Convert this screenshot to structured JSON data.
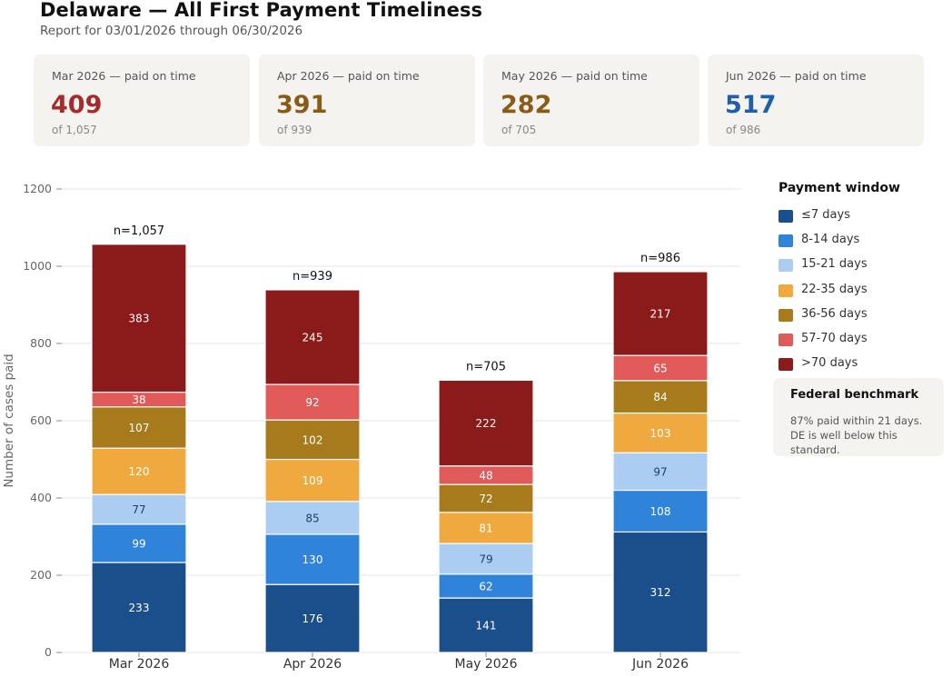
{
  "title": "Delaware — All First Payment Timeliness",
  "subtitle": "Report for 03/01/2026 through 06/30/2026",
  "cards": [
    {
      "label": "Mar 2026 — paid on time",
      "value": "409",
      "sub": "of 1,057",
      "color": "#a52a2a"
    },
    {
      "label": "Apr 2026 — paid on time",
      "value": "391",
      "sub": "of 939",
      "color": "#8b5a16"
    },
    {
      "label": "May 2026 — paid on time",
      "value": "282",
      "sub": "of 705",
      "color": "#8b5a16"
    },
    {
      "label": "Jun 2026 — paid on time",
      "value": "517",
      "sub": "of 986",
      "color": "#1f5fa8"
    }
  ],
  "legend": {
    "title": "Payment window"
  },
  "benchmark": {
    "title": "Federal benchmark",
    "text": "87% paid within 21 days. DE is well below this standard."
  },
  "chart_data": {
    "type": "bar",
    "stacked": true,
    "categories": [
      "Mar 2026",
      "Apr 2026",
      "May 2026",
      "Jun 2026"
    ],
    "totals": [
      "n=1,057",
      "n=939",
      "n=705",
      "n=986"
    ],
    "ylabel": "Number of cases paid",
    "ylim": [
      0,
      1200
    ],
    "yticks": [
      0,
      200,
      400,
      600,
      800,
      1000,
      1200
    ],
    "grid": true,
    "legend_position": "right",
    "series": [
      {
        "name": "≤7 days",
        "color": "#1b4f8c",
        "label_color": "#ffffff",
        "values": [
          233,
          176,
          141,
          312
        ]
      },
      {
        "name": "8-14 days",
        "color": "#2f83d8",
        "label_color": "#ffffff",
        "values": [
          99,
          130,
          62,
          108
        ]
      },
      {
        "name": "15-21 days",
        "color": "#abcdf1",
        "label_color": "#1b3f6e",
        "values": [
          77,
          85,
          79,
          97
        ]
      },
      {
        "name": "22-35 days",
        "color": "#f0a93e",
        "label_color": "#ffffff",
        "values": [
          120,
          109,
          81,
          103
        ]
      },
      {
        "name": "36-56 days",
        "color": "#a77a1c",
        "label_color": "#ffffff",
        "values": [
          107,
          102,
          72,
          84
        ]
      },
      {
        "name": "57-70 days",
        "color": "#e05a5a",
        "label_color": "#ffffff",
        "values": [
          38,
          92,
          48,
          65
        ]
      },
      {
        "name": ">70 days",
        "color": "#8b1a1a",
        "label_color": "#ffffff",
        "values": [
          383,
          245,
          222,
          217
        ]
      }
    ]
  }
}
